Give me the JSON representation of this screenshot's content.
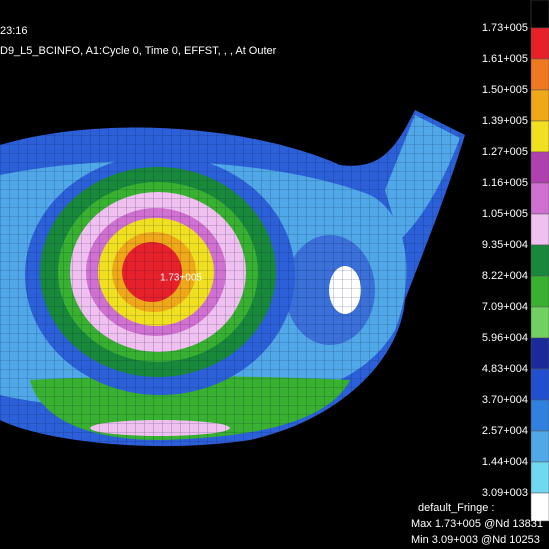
{
  "header": {
    "time": "23:16",
    "result": "D9_L5_BCINFO, A1:Cycle 0, Time 0, EFFST, , , At Outer"
  },
  "legend": {
    "labels": [
      "1.73+005",
      "1.61+005",
      "1.50+005",
      "1.39+005",
      "1.27+005",
      "1.16+005",
      "1.05+005",
      "9.35+004",
      "8.22+004",
      "7.09+004",
      "5.96+004",
      "4.83+004",
      "3.70+004",
      "2.57+004",
      "1.44+004",
      "3.09+003"
    ],
    "colors": [
      "#000000",
      "#e8202a",
      "#f07820",
      "#f0a818",
      "#f0e020",
      "#b040b0",
      "#d070d0",
      "#f0c0f0",
      "#18883a",
      "#38b030",
      "#70d060",
      "#1a2a9a",
      "#2050d0",
      "#3080e0",
      "#50a8e8",
      "#70d8f0",
      "#ffffff"
    ]
  },
  "plot": {
    "max_label": "1.73+005"
  },
  "footer": {
    "name": "default_Fringe :",
    "max": "Max 1.73+005 @Nd 13831",
    "min": "Min 3.09+003 @Nd 10253"
  }
}
